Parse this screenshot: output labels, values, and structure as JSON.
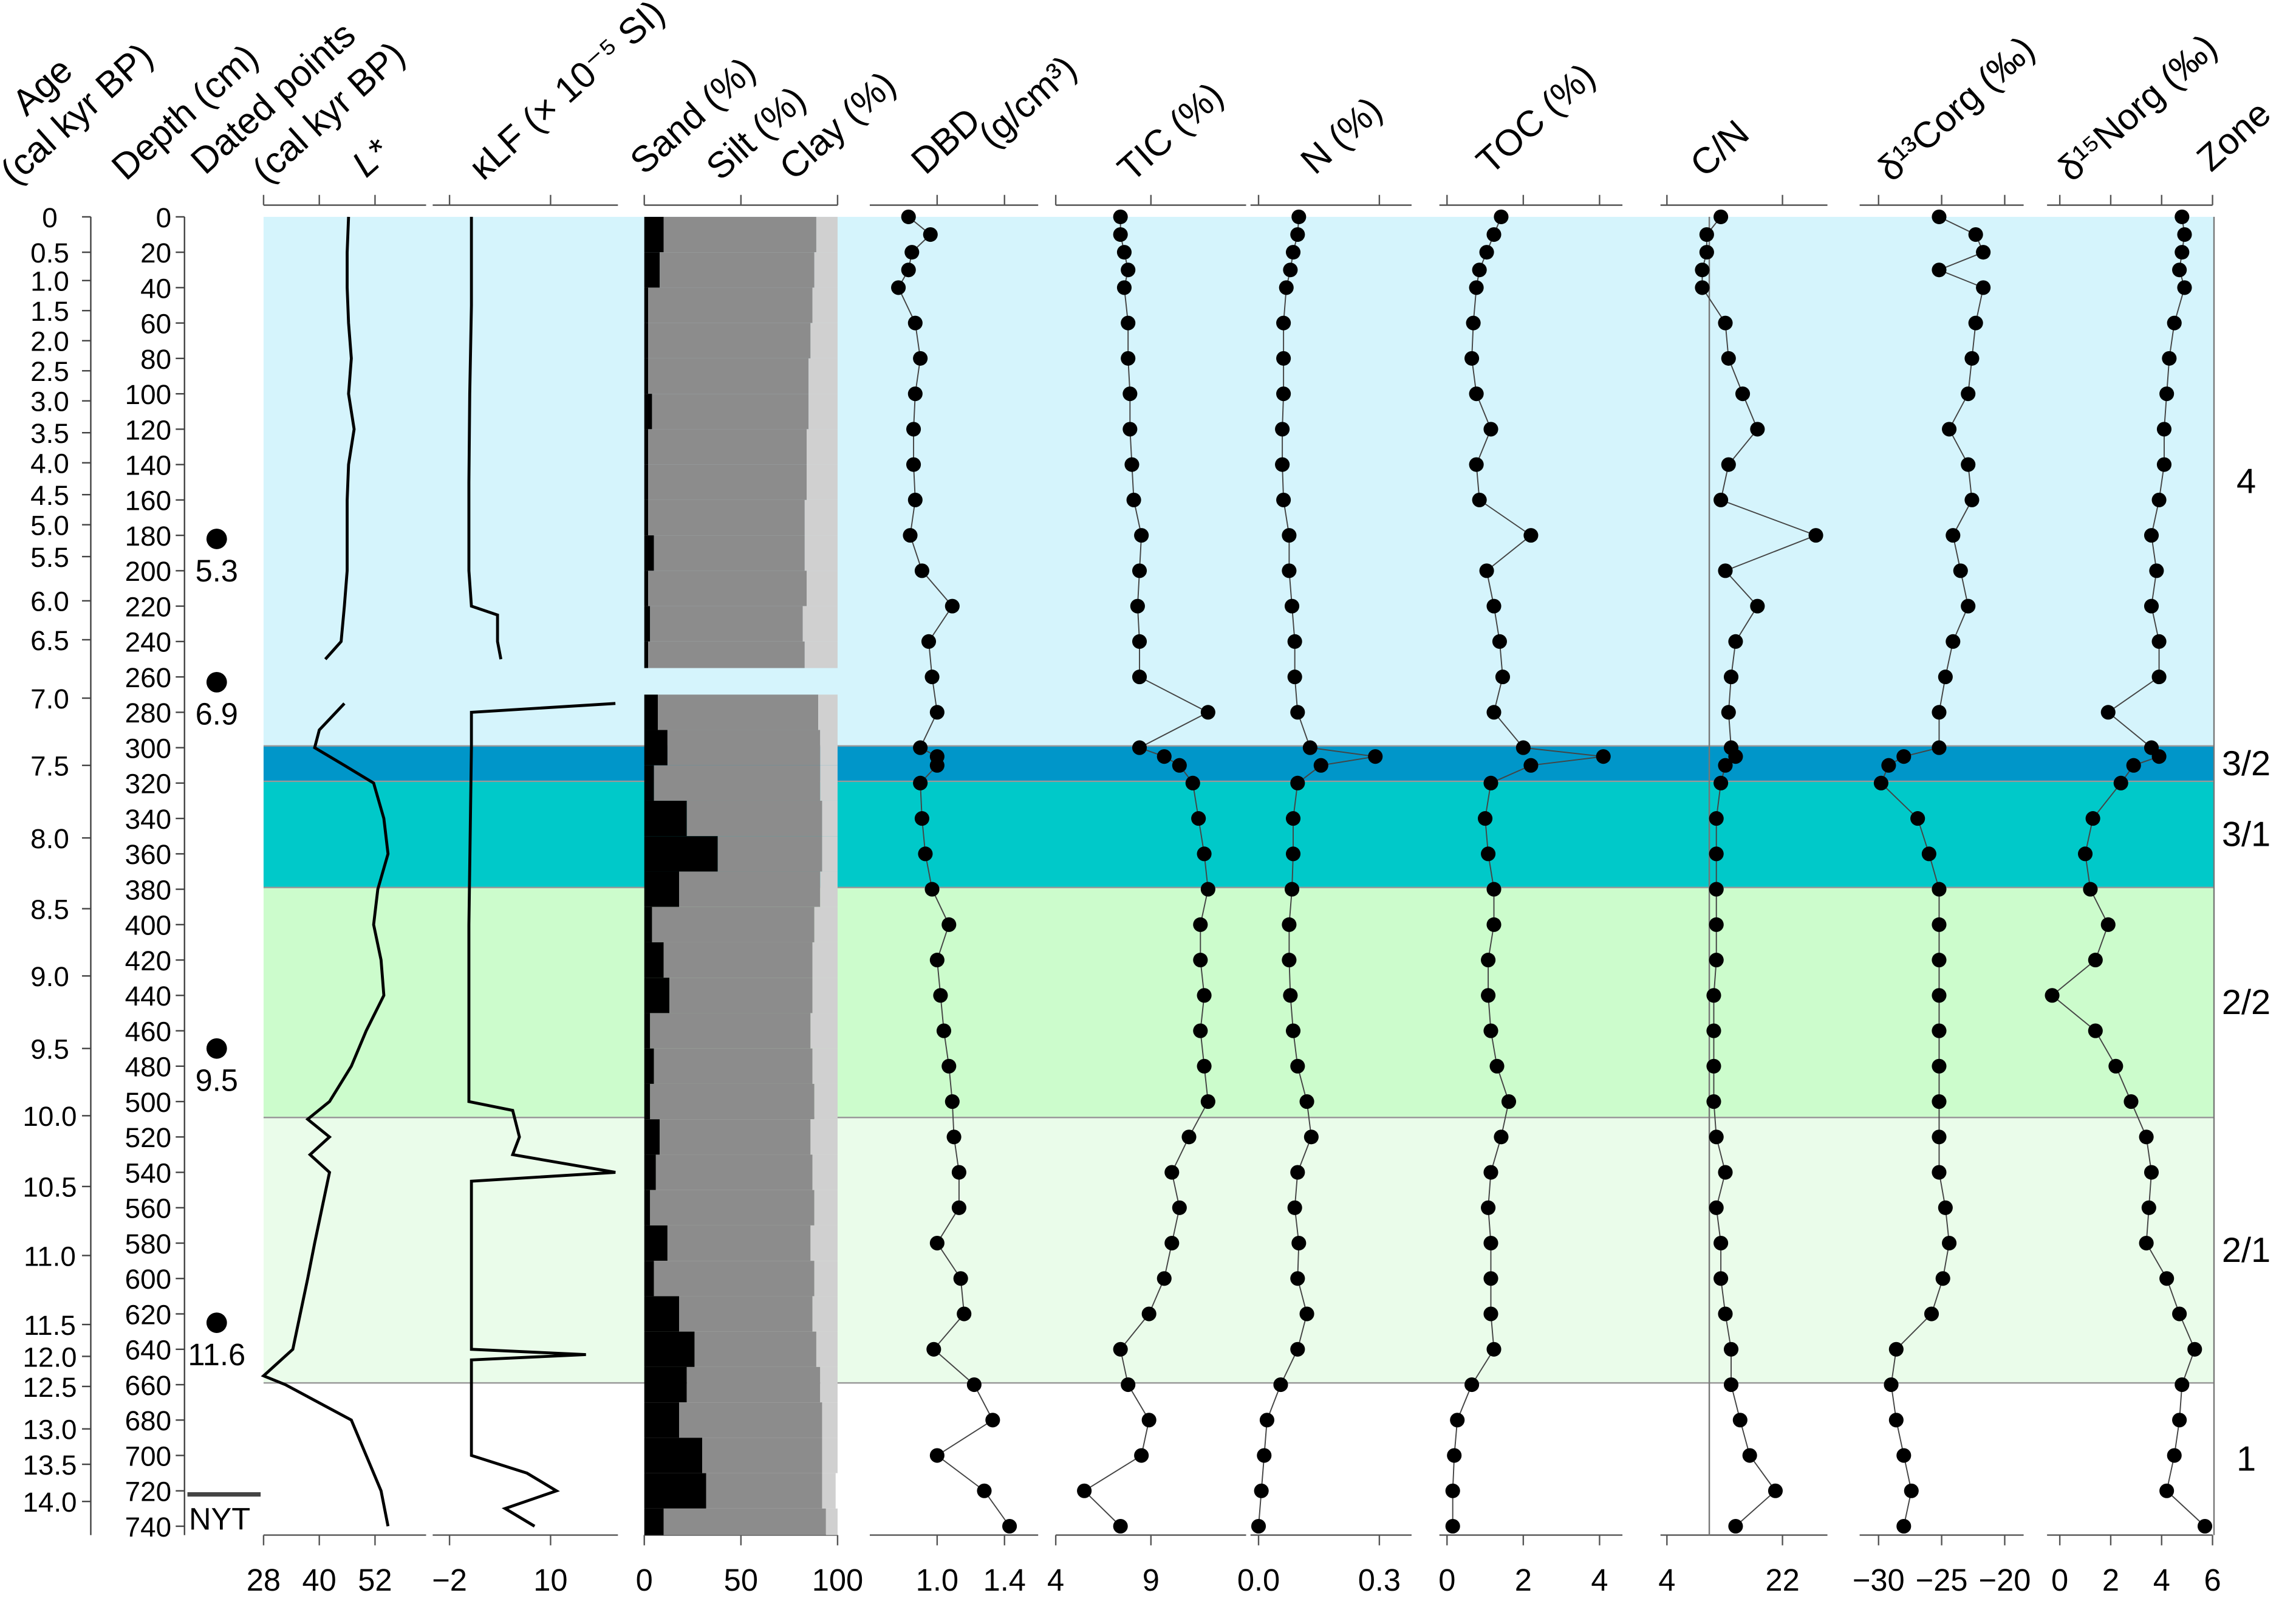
{
  "chart_data": [
    {
      "type": "age-axis",
      "title": [
        "Age",
        "(cal kyr BP)"
      ],
      "yticks": [
        0,
        0.5,
        {
          "value": 1,
          "label": "1.0"
        },
        1.5,
        {
          "value": 2,
          "label": "2.0"
        },
        2.5,
        {
          "value": 3,
          "label": "3.0"
        },
        3.5,
        {
          "value": 4,
          "label": "4.0"
        },
        4.5,
        {
          "value": 5,
          "label": "5.0"
        },
        5.5,
        {
          "value": 6,
          "label": "6.0"
        },
        6.5,
        {
          "value": 7,
          "label": "7.0"
        },
        7.5,
        {
          "value": 8,
          "label": "8.0"
        },
        8.5,
        {
          "value": 9,
          "label": "9.0"
        },
        9.5,
        {
          "value": 10,
          "label": "10.0"
        },
        10.5,
        {
          "value": 11,
          "label": "11.0"
        },
        11.5,
        {
          "value": 12,
          "label": "12.0"
        },
        12.5,
        {
          "value": 13,
          "label": "13.0"
        },
        13.5,
        {
          "value": 14,
          "label": "14.0"
        }
      ],
      "tick_depths": [
        0,
        20,
        36,
        53,
        70,
        87,
        104,
        122,
        139,
        157,
        174,
        192,
        217,
        239,
        272,
        310,
        351,
        391,
        429,
        470,
        508,
        548,
        587,
        626,
        644,
        661,
        685,
        705,
        726
      ]
    },
    {
      "type": "depth-axis",
      "title": "Depth (cm)",
      "ylim": [
        0,
        745
      ],
      "yticks": [
        0,
        20,
        40,
        60,
        80,
        100,
        120,
        140,
        160,
        180,
        200,
        220,
        240,
        260,
        280,
        300,
        320,
        340,
        360,
        380,
        400,
        420,
        440,
        460,
        480,
        500,
        520,
        540,
        560,
        580,
        600,
        620,
        640,
        660,
        680,
        700,
        720,
        740
      ]
    },
    {
      "type": "dated-points",
      "title": [
        "Dated points",
        "(cal kyr BP)"
      ],
      "y": [
        182,
        263,
        470,
        625
      ],
      "values": [
        5.3,
        6.9,
        9.5,
        11.6
      ],
      "annotation": {
        "text": "NYT",
        "y": 722
      }
    },
    {
      "type": "line",
      "title": "L*",
      "color": "#000000",
      "xlim": [
        28,
        63
      ],
      "xticks": [
        28,
        40,
        52
      ],
      "y": [
        0,
        20,
        40,
        60,
        80,
        100,
        120,
        140,
        160,
        180,
        200,
        220,
        240,
        250,
        260,
        275,
        290,
        300,
        310,
        320,
        340,
        360,
        380,
        400,
        420,
        440,
        460,
        480,
        500,
        510,
        520,
        530,
        540,
        560,
        580,
        600,
        620,
        640,
        655,
        660,
        680,
        700,
        720,
        740
      ],
      "values": [
        46.3,
        46,
        46,
        46.3,
        46.9,
        46.3,
        47.5,
        46.3,
        46,
        46,
        46,
        45.4,
        44.7,
        41.3,
        null,
        45.4,
        40,
        39,
        45.4,
        51.7,
        53.9,
        54.8,
        52.6,
        51.7,
        53.3,
        53.9,
        50.1,
        46.9,
        42.2,
        37.5,
        42.2,
        38,
        42.2,
        40.6,
        39,
        37.5,
        35.9,
        34.3,
        28,
        32.7,
        46.9,
        50.1,
        53.3,
        54.8
      ]
    },
    {
      "type": "line",
      "title": "κLF (× 10⁻⁵ SI)",
      "color": "#000000",
      "xlim": [
        -4,
        18
      ],
      "xticks": [
        {
          "value": -2,
          "label": "−2"
        },
        10
      ],
      "y": [
        0,
        50,
        100,
        150,
        200,
        220,
        225,
        240,
        250,
        260,
        275,
        280,
        300,
        400,
        500,
        505,
        520,
        530,
        540,
        545,
        600,
        640,
        643,
        646,
        700,
        710,
        720,
        730,
        740
      ],
      "values": [
        0.6,
        0.6,
        0.4,
        0.3,
        0.3,
        0.6,
        3.7,
        3.7,
        4.1,
        null,
        17.7,
        0.6,
        0.6,
        0.3,
        0.3,
        5.5,
        6.3,
        5.5,
        17.7,
        0.6,
        0.6,
        0.6,
        14.2,
        0.6,
        0.6,
        7.2,
        10.7,
        4.6,
        8.1
      ]
    },
    {
      "type": "stacked-bar",
      "xlim": [
        0,
        100
      ],
      "xticks": [
        0,
        50,
        100
      ],
      "y_edges": [
        0,
        20,
        40,
        60,
        80,
        100,
        120,
        140,
        160,
        180,
        200,
        220,
        240,
        255,
        270,
        290,
        310,
        330,
        350,
        370,
        390,
        410,
        430,
        450,
        470,
        490,
        510,
        530,
        550,
        570,
        590,
        610,
        630,
        650,
        670,
        690,
        710,
        730,
        745
      ],
      "series": [
        {
          "name": "Sand (%)",
          "color": "#000000",
          "values": [
            10,
            8,
            2,
            2,
            2,
            4,
            2,
            2,
            2,
            5,
            2,
            3,
            2,
            null,
            7,
            12,
            5,
            22,
            38,
            18,
            4,
            10,
            13,
            3,
            5,
            3,
            8,
            6,
            3,
            12,
            5,
            18,
            26,
            22,
            18,
            30,
            32,
            10
          ]
        },
        {
          "name": "Silt (%)",
          "color": "#8c8c8c",
          "values": [
            79,
            80,
            85,
            84,
            83,
            81,
            82,
            82,
            81,
            78,
            82,
            79,
            81,
            null,
            83,
            79,
            86,
            70,
            54,
            73,
            84,
            77,
            74,
            83,
            82,
            85,
            78,
            81,
            85,
            74,
            83,
            69,
            63,
            69,
            74,
            62,
            60,
            84
          ]
        },
        {
          "name": "Clay (%)",
          "color": "#d0d0d0",
          "values": [
            11,
            12,
            13,
            14,
            15,
            15,
            16,
            16,
            17,
            17,
            16,
            18,
            17,
            null,
            10,
            9,
            9,
            8,
            8,
            9,
            12,
            13,
            13,
            14,
            13,
            12,
            14,
            13,
            12,
            14,
            12,
            13,
            11,
            9,
            8,
            8,
            7,
            6
          ]
        }
      ]
    },
    {
      "type": "scatter-line",
      "title": [
        "DBD",
        "(g/cm³)"
      ],
      "color": "#000000",
      "xlim": [
        0.6,
        1.6
      ],
      "xticks": [
        {
          "value": 1,
          "label": "1.0"
        },
        1.4
      ],
      "y": [
        0,
        10,
        20,
        30,
        40,
        60,
        80,
        100,
        120,
        140,
        160,
        180,
        200,
        220,
        240,
        260,
        280,
        300,
        305,
        310,
        320,
        340,
        360,
        380,
        400,
        420,
        440,
        460,
        480,
        500,
        520,
        540,
        560,
        580,
        600,
        620,
        640,
        660,
        680,
        700,
        720,
        740
      ],
      "values": [
        0.83,
        0.96,
        0.85,
        0.83,
        0.77,
        0.87,
        0.9,
        0.87,
        0.86,
        0.86,
        0.87,
        0.84,
        0.91,
        1.09,
        0.95,
        0.97,
        1.0,
        0.9,
        1.0,
        1.0,
        0.9,
        0.91,
        0.93,
        0.97,
        1.07,
        1.0,
        1.02,
        1.04,
        1.07,
        1.09,
        1.1,
        1.13,
        1.13,
        1.0,
        1.14,
        1.16,
        0.98,
        1.22,
        1.33,
        1.0,
        1.28,
        1.43
      ]
    },
    {
      "type": "scatter-line",
      "title": "TIC (%)",
      "color": "#000000",
      "xlim": [
        4,
        14
      ],
      "xticks": [
        4,
        9
      ],
      "y": [
        0,
        10,
        20,
        30,
        40,
        60,
        80,
        100,
        120,
        140,
        160,
        180,
        200,
        220,
        240,
        260,
        280,
        300,
        305,
        310,
        320,
        340,
        360,
        380,
        400,
        420,
        440,
        460,
        480,
        500,
        520,
        540,
        560,
        580,
        600,
        620,
        640,
        660,
        680,
        700,
        720,
        740
      ],
      "values": [
        7.4,
        7.4,
        7.6,
        7.8,
        7.6,
        7.8,
        7.8,
        7.9,
        7.9,
        8.0,
        8.1,
        8.5,
        8.4,
        8.3,
        8.4,
        8.4,
        12.0,
        8.4,
        9.7,
        10.5,
        11.2,
        11.5,
        11.8,
        12.0,
        11.6,
        11.6,
        11.8,
        11.6,
        11.8,
        12.0,
        11.0,
        10.1,
        10.5,
        10.1,
        9.7,
        8.9,
        7.4,
        7.8,
        8.9,
        8.5,
        5.5,
        7.4
      ]
    },
    {
      "type": "scatter-line",
      "title": "N (%)",
      "color": "#000000",
      "xlim": [
        -0.02,
        0.38
      ],
      "xticks": [
        {
          "value": 0,
          "label": "0.0"
        },
        0.3
      ],
      "y": [
        0,
        10,
        20,
        30,
        40,
        60,
        80,
        100,
        120,
        140,
        160,
        180,
        200,
        220,
        240,
        260,
        280,
        300,
        305,
        310,
        320,
        340,
        360,
        380,
        400,
        420,
        440,
        460,
        480,
        500,
        520,
        540,
        560,
        580,
        600,
        620,
        640,
        660,
        680,
        700,
        720,
        740
      ],
      "values": [
        0.1,
        0.097,
        0.086,
        0.079,
        0.069,
        0.062,
        0.062,
        0.062,
        0.059,
        0.059,
        0.062,
        0.076,
        0.076,
        0.083,
        0.09,
        0.09,
        0.097,
        0.128,
        0.29,
        0.155,
        0.097,
        0.086,
        0.086,
        0.083,
        0.076,
        0.076,
        0.079,
        0.086,
        0.097,
        0.12,
        0.131,
        0.097,
        0.09,
        0.1,
        0.097,
        0.12,
        0.097,
        0.055,
        0.021,
        0.014,
        0.007,
        0
      ]
    },
    {
      "type": "scatter-line",
      "title": "TOC (%)",
      "color": "#000000",
      "xlim": [
        -0.2,
        4.6
      ],
      "xticks": [
        0,
        2,
        4
      ],
      "y": [
        0,
        10,
        20,
        30,
        40,
        60,
        80,
        100,
        120,
        140,
        160,
        180,
        200,
        220,
        240,
        260,
        280,
        300,
        305,
        310,
        320,
        340,
        360,
        380,
        400,
        420,
        440,
        460,
        480,
        500,
        520,
        540,
        560,
        580,
        600,
        620,
        640,
        660,
        680,
        700,
        720,
        740
      ],
      "values": [
        1.42,
        1.23,
        1.04,
        0.85,
        0.77,
        0.69,
        0.65,
        0.77,
        1.15,
        0.77,
        0.85,
        2.2,
        1.04,
        1.23,
        1.38,
        1.46,
        1.23,
        2.0,
        4.1,
        2.2,
        1.15,
        1.0,
        1.08,
        1.23,
        1.23,
        1.08,
        1.08,
        1.15,
        1.31,
        1.62,
        1.42,
        1.15,
        1.08,
        1.15,
        1.15,
        1.15,
        1.23,
        0.65,
        0.27,
        0.19,
        0.15,
        0.15
      ]
    },
    {
      "type": "scatter-line",
      "title": "C/N",
      "color": "#000000",
      "xlim": [
        3,
        29
      ],
      "xticks": [
        4,
        22
      ],
      "vline": 10.6,
      "y": [
        0,
        10,
        20,
        30,
        40,
        60,
        80,
        100,
        120,
        140,
        160,
        180,
        200,
        220,
        240,
        260,
        280,
        300,
        305,
        310,
        320,
        340,
        360,
        380,
        400,
        420,
        440,
        460,
        480,
        500,
        520,
        540,
        560,
        580,
        600,
        620,
        640,
        660,
        680,
        700,
        720,
        740
      ],
      "values": [
        12.4,
        10.2,
        10.2,
        9.5,
        9.5,
        13.1,
        13.6,
        15.8,
        18.1,
        13.6,
        12.4,
        27.2,
        13.1,
        18.1,
        14.7,
        14.0,
        13.6,
        14.0,
        14.7,
        13.1,
        12.4,
        11.7,
        11.7,
        11.7,
        11.7,
        11.7,
        11.3,
        11.3,
        11.3,
        11.3,
        11.7,
        13.1,
        11.7,
        12.4,
        12.4,
        13.1,
        14.0,
        14.0,
        15.4,
        16.9,
        20.9,
        14.7
      ]
    },
    {
      "type": "scatter-line",
      "title": "δ¹³Corg (‰)",
      "color": "#000000",
      "xlim": [
        -31.5,
        -18.5
      ],
      "xticks": [
        {
          "value": -30,
          "label": "−30"
        },
        {
          "value": -25,
          "label": "−25"
        },
        {
          "value": -20,
          "label": "−20"
        }
      ],
      "y": [
        0,
        10,
        20,
        30,
        40,
        60,
        80,
        100,
        120,
        140,
        160,
        180,
        200,
        220,
        240,
        260,
        280,
        300,
        305,
        310,
        320,
        340,
        360,
        380,
        400,
        420,
        440,
        460,
        480,
        500,
        520,
        540,
        560,
        580,
        600,
        620,
        640,
        660,
        680,
        700,
        720,
        740
      ],
      "values": [
        -25.2,
        -22.3,
        -21.7,
        -25.2,
        -21.7,
        -22.3,
        -22.6,
        -22.9,
        -24.4,
        -22.9,
        -22.6,
        -24.1,
        -23.5,
        -22.9,
        -24.1,
        -24.7,
        -25.2,
        -25.2,
        -28.0,
        -29.2,
        -29.8,
        -26.9,
        -26.0,
        -25.2,
        -25.2,
        -25.2,
        -25.2,
        -25.2,
        -25.2,
        -25.2,
        -25.2,
        -25.2,
        -24.7,
        -24.4,
        -24.9,
        -25.8,
        -28.6,
        -29.0,
        -28.6,
        -28.0,
        -27.4,
        -28.0
      ]
    },
    {
      "type": "scatter-line",
      "title": "δ¹⁵Norg (‰)",
      "color": "#000000",
      "xlim": [
        -0.5,
        6
      ],
      "xticks": [
        0,
        2,
        4,
        6
      ],
      "y": [
        0,
        10,
        20,
        30,
        40,
        60,
        80,
        100,
        120,
        140,
        160,
        180,
        200,
        220,
        240,
        260,
        280,
        300,
        305,
        310,
        320,
        340,
        360,
        380,
        400,
        420,
        440,
        460,
        480,
        500,
        520,
        540,
        560,
        580,
        600,
        620,
        640,
        660,
        680,
        700,
        720,
        740
      ],
      "values": [
        4.8,
        4.9,
        4.8,
        4.7,
        4.9,
        4.5,
        4.3,
        4.2,
        4.1,
        4.1,
        3.9,
        3.6,
        3.8,
        3.6,
        3.9,
        3.9,
        1.9,
        3.6,
        3.9,
        2.9,
        2.4,
        1.3,
        1.0,
        1.2,
        1.9,
        1.4,
        -0.3,
        1.4,
        2.2,
        2.8,
        3.4,
        3.6,
        3.5,
        3.4,
        4.2,
        4.7,
        5.3,
        4.8,
        4.7,
        4.5,
        4.2,
        5.7
      ]
    },
    {
      "type": "zones",
      "title": "Zone",
      "zones": [
        {
          "label": "4",
          "top": 0,
          "bottom": 299,
          "color": "#d5f4fc"
        },
        {
          "label": "3/2",
          "top": 299,
          "bottom": 319,
          "color": "#0096c9"
        },
        {
          "label": "3/1",
          "top": 319,
          "bottom": 379,
          "color": "#00c9c9"
        },
        {
          "label": "2/2",
          "top": 379,
          "bottom": 509,
          "color": "#ccfccc"
        },
        {
          "label": "2/1",
          "top": 509,
          "bottom": 659,
          "color": "#eafcea"
        },
        {
          "label": "1",
          "top": 659,
          "bottom": 745,
          "color": "#ffffff"
        }
      ]
    }
  ]
}
